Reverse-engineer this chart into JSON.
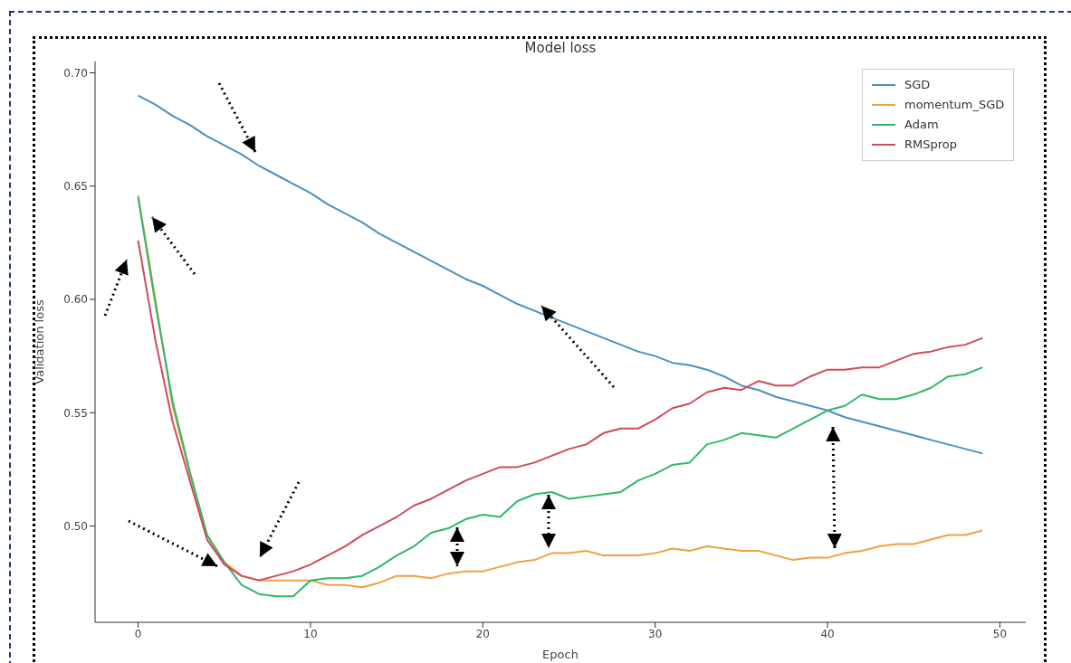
{
  "chart_data": {
    "type": "line",
    "title": "Model loss",
    "xlabel": "Epoch",
    "ylabel": "Validation loss",
    "x": [
      0,
      1,
      2,
      3,
      4,
      5,
      6,
      7,
      8,
      9,
      10,
      11,
      12,
      13,
      14,
      15,
      16,
      17,
      18,
      19,
      20,
      21,
      22,
      23,
      24,
      25,
      26,
      27,
      28,
      29,
      30,
      31,
      32,
      33,
      34,
      35,
      36,
      37,
      38,
      39,
      40,
      41,
      42,
      43,
      44,
      45,
      46,
      47,
      48,
      49
    ],
    "series": [
      {
        "name": "SGD",
        "color": "#4c8fc0",
        "values": [
          0.69,
          0.686,
          0.681,
          0.677,
          0.672,
          0.668,
          0.664,
          0.659,
          0.655,
          0.651,
          0.647,
          0.642,
          0.638,
          0.634,
          0.629,
          0.625,
          0.621,
          0.617,
          0.613,
          0.609,
          0.606,
          0.602,
          0.598,
          0.595,
          0.592,
          0.589,
          0.586,
          0.583,
          0.58,
          0.577,
          0.575,
          0.572,
          0.571,
          0.569,
          0.566,
          0.562,
          0.56,
          0.557,
          0.555,
          0.553,
          0.551,
          0.548,
          0.546,
          0.544,
          0.542,
          0.54,
          0.538,
          0.536,
          0.534,
          0.532
        ]
      },
      {
        "name": "momentum_SGD",
        "color": "#f0a040",
        "values": [
          0.646,
          0.6,
          0.553,
          0.523,
          0.496,
          0.484,
          0.478,
          0.476,
          0.476,
          0.476,
          0.476,
          0.474,
          0.474,
          0.473,
          0.475,
          0.478,
          0.478,
          0.477,
          0.479,
          0.48,
          0.48,
          0.482,
          0.484,
          0.485,
          0.488,
          0.488,
          0.489,
          0.487,
          0.487,
          0.487,
          0.488,
          0.49,
          0.489,
          0.491,
          0.49,
          0.489,
          0.489,
          0.487,
          0.485,
          0.486,
          0.486,
          0.488,
          0.489,
          0.491,
          0.492,
          0.492,
          0.494,
          0.496,
          0.496,
          0.498
        ]
      },
      {
        "name": "Adam",
        "color": "#2eb86a",
        "values": [
          0.645,
          0.598,
          0.555,
          0.524,
          0.496,
          0.484,
          0.474,
          0.47,
          0.469,
          0.469,
          0.476,
          0.477,
          0.477,
          0.478,
          0.482,
          0.487,
          0.491,
          0.497,
          0.499,
          0.503,
          0.505,
          0.504,
          0.511,
          0.514,
          0.515,
          0.512,
          0.513,
          0.514,
          0.515,
          0.52,
          0.523,
          0.527,
          0.528,
          0.536,
          0.538,
          0.541,
          0.54,
          0.539,
          0.543,
          0.547,
          0.551,
          0.553,
          0.558,
          0.556,
          0.556,
          0.558,
          0.561,
          0.566,
          0.567,
          0.57
        ]
      },
      {
        "name": "RMSprop",
        "color": "#d0495a",
        "values": [
          0.626,
          0.582,
          0.546,
          0.52,
          0.494,
          0.483,
          0.478,
          0.476,
          0.478,
          0.48,
          0.483,
          0.487,
          0.491,
          0.496,
          0.5,
          0.504,
          0.509,
          0.512,
          0.516,
          0.52,
          0.523,
          0.526,
          0.526,
          0.528,
          0.531,
          0.534,
          0.536,
          0.541,
          0.543,
          0.543,
          0.547,
          0.552,
          0.554,
          0.559,
          0.561,
          0.56,
          0.564,
          0.562,
          0.562,
          0.566,
          0.569,
          0.569,
          0.57,
          0.57,
          0.573,
          0.576,
          0.577,
          0.579,
          0.58,
          0.583
        ]
      }
    ],
    "xlim": [
      -2.5,
      51.5
    ],
    "xticks": [
      0,
      10,
      20,
      30,
      40,
      50
    ],
    "ylim": [
      0.4575,
      0.705
    ],
    "yticks": [
      {
        "value": 0.5,
        "label": "0.50"
      },
      0.55,
      {
        "value": 0.6,
        "label": "0.60"
      },
      0.65,
      {
        "value": 0.7,
        "label": "0.70"
      }
    ],
    "legend": "top right"
  }
}
